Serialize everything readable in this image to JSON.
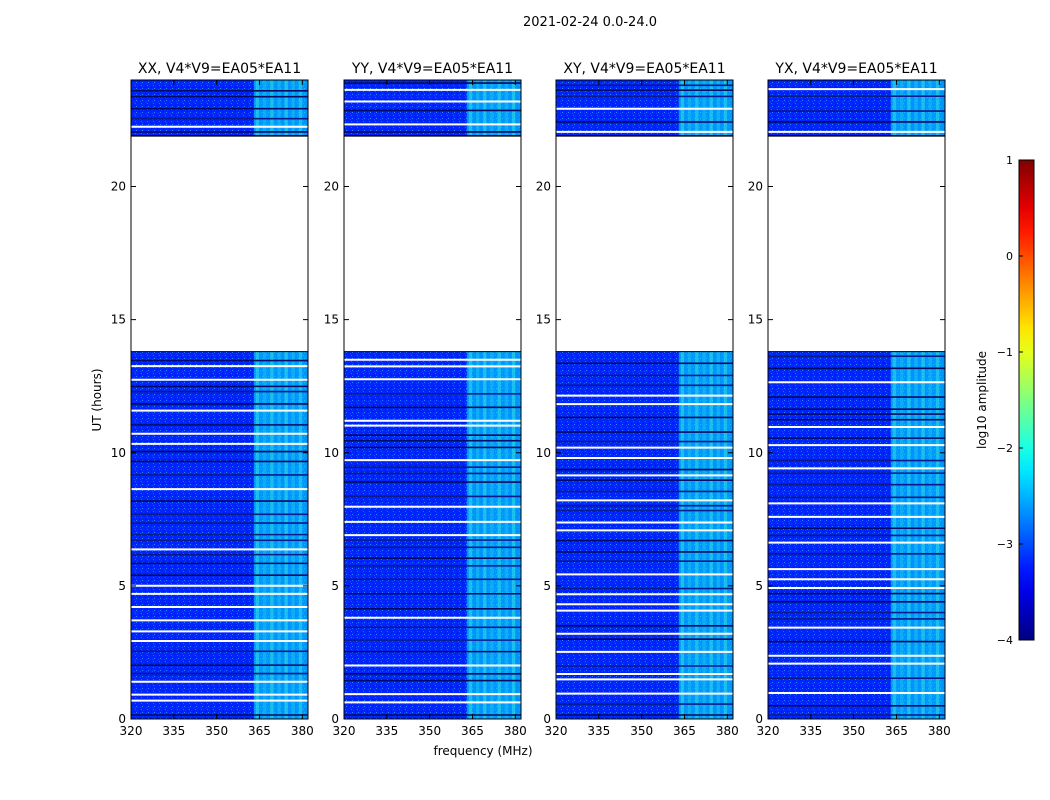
{
  "chart_data": {
    "type": "heatmap",
    "title": "2021-02-24 0.0-24.0",
    "xlabel": "frequency (MHz)",
    "ylabel": "UT (hours)",
    "xlim": [
      320,
      382
    ],
    "ylim": [
      0,
      24
    ],
    "xticks": [
      320,
      335,
      350,
      365,
      380
    ],
    "yticks": [
      0,
      5,
      10,
      15,
      20
    ],
    "panels": [
      {
        "name": "XX",
        "title": "XX, V4*V9=EA05*EA11"
      },
      {
        "name": "YY",
        "title": "YY, V4*V9=EA05*EA11"
      },
      {
        "name": "XY",
        "title": "XY, V4*V9=EA05*EA11"
      },
      {
        "name": "YX",
        "title": "YX, V4*V9=EA05*EA11"
      }
    ],
    "data_blocks_ut": [
      [
        0.0,
        13.8
      ],
      [
        21.9,
        24.0
      ]
    ],
    "gap_ut": [
      13.8,
      21.9
    ],
    "bright_band_mhz": [
      363,
      382
    ],
    "background_log10_amplitude": -3.2,
    "band_log10_amplitude": -2.2,
    "colorbar": {
      "label": "log10 amplitude",
      "range": [
        -4,
        1
      ],
      "ticks": [
        1,
        0,
        -1,
        -2,
        -3,
        -4
      ],
      "tick_labels": [
        "1",
        "0",
        "−1",
        "−2",
        "−3",
        "−4"
      ],
      "colormap": "jet"
    }
  }
}
